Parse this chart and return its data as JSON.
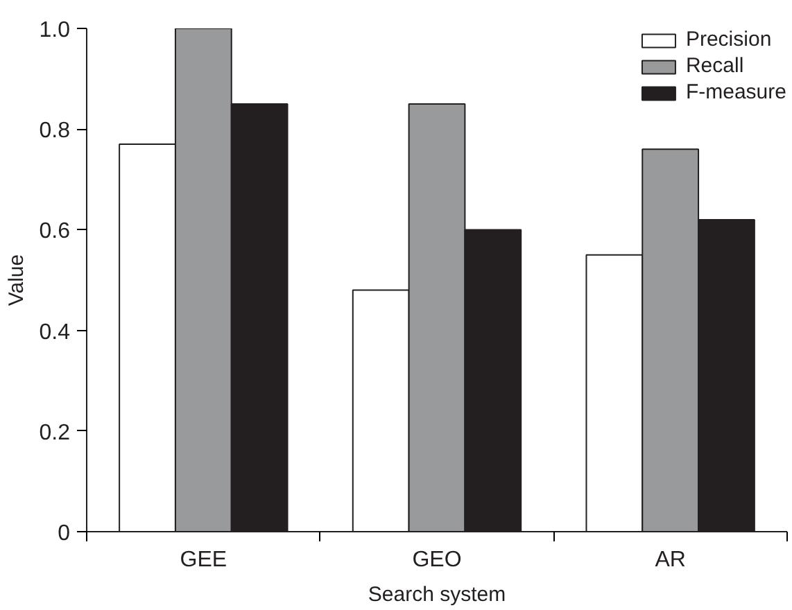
{
  "chart_data": {
    "type": "bar",
    "xlabel": "Search system",
    "ylabel": "Value",
    "categories": [
      "GEE",
      "GEO",
      "AR"
    ],
    "series": [
      {
        "name": "Precision",
        "color": "#ffffff",
        "values": [
          0.77,
          0.48,
          0.55
        ]
      },
      {
        "name": "Recall",
        "color": "#999a9c",
        "values": [
          1.0,
          0.85,
          0.76
        ]
      },
      {
        "name": "F-measure",
        "color": "#231f20",
        "values": [
          0.85,
          0.6,
          0.62
        ]
      }
    ],
    "ylim": [
      0,
      1.0
    ],
    "yticks": [
      0,
      0.2,
      0.4,
      0.6,
      0.8,
      {
        "value": 1,
        "label": "1.0"
      }
    ],
    "grid": false,
    "legend": "top right"
  }
}
